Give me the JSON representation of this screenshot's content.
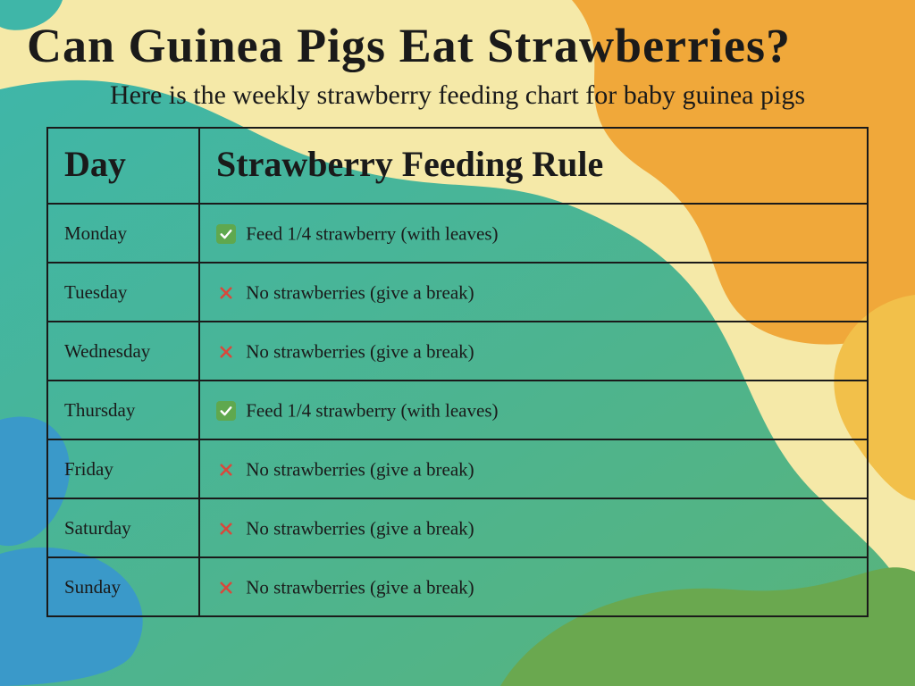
{
  "title": "Can Guinea Pigs Eat Strawberries?",
  "subtitle": "Here is the weekly strawberry feeding chart for baby guinea pigs",
  "table": {
    "headers": {
      "day": "Day",
      "rule": "Strawberry Feeding Rule"
    },
    "rows": [
      {
        "day": "Monday",
        "icon": "check",
        "rule": "Feed 1/4 strawberry (with leaves)"
      },
      {
        "day": "Tuesday",
        "icon": "cross",
        "rule": "No strawberries (give a break)"
      },
      {
        "day": "Wednesday",
        "icon": "cross",
        "rule": "No strawberries (give a break)"
      },
      {
        "day": "Thursday",
        "icon": "check",
        "rule": "Feed 1/4 strawberry (with leaves)"
      },
      {
        "day": "Friday",
        "icon": "cross",
        "rule": "No strawberries (give a break)"
      },
      {
        "day": "Saturday",
        "icon": "cross",
        "rule": "No strawberries (give a break)"
      },
      {
        "day": "Sunday",
        "icon": "cross",
        "rule": "No strawberries (give a break)"
      }
    ]
  },
  "colors": {
    "check_bg": "#5fa84e",
    "check_mark": "#ffffff",
    "cross_stroke": "#d9483b",
    "text": "#1a1a1a",
    "border": "#1a1a1a",
    "bg_cream": "#f5e9a8",
    "bg_teal": "#3fb6a8",
    "bg_orange": "#f0a83a",
    "bg_blue": "#3a99c9",
    "bg_green": "#6aa84f"
  },
  "background": {
    "description": "Organic wavy color blobs layered: cream base, teal large wave from left, orange wave upper-right, blue blob bottom-left, green blob bottom-right; soft gradient blend"
  }
}
